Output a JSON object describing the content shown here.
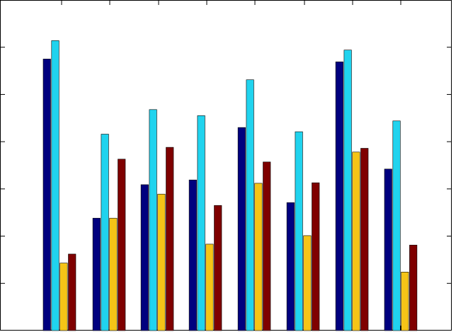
{
  "chart_data": {
    "type": "bar",
    "title": "",
    "xlabel": "",
    "ylabel": "",
    "categories": [
      "",
      "",
      "",
      "",
      "",
      "",
      "",
      ""
    ],
    "ylim": [
      0,
      7
    ],
    "grid": false,
    "legend": "none",
    "series": [
      {
        "color": "#00007f",
        "values": [
          5.75,
          2.38,
          3.09,
          3.19,
          4.3,
          2.71,
          5.69,
          3.42
        ]
      },
      {
        "color": "#20d3ee",
        "values": [
          6.14,
          4.16,
          4.68,
          4.55,
          5.31,
          4.21,
          5.94,
          4.44
        ]
      },
      {
        "color": "#f5c417",
        "values": [
          1.43,
          2.38,
          2.89,
          1.83,
          3.12,
          2.01,
          3.78,
          1.24
        ]
      },
      {
        "color": "#7f0000",
        "values": [
          1.62,
          3.63,
          3.88,
          2.65,
          3.57,
          3.13,
          3.86,
          1.81
        ]
      }
    ]
  }
}
